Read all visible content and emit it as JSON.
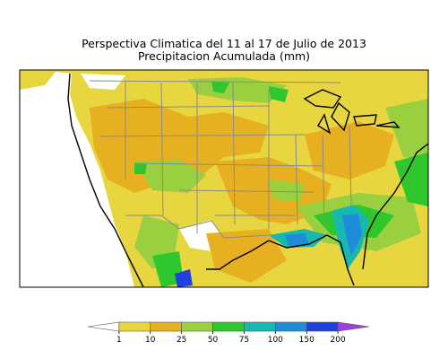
{
  "header": {
    "title_line1": "Perspectiva Climatica del 11 al 17 de Julio de 2013",
    "title_line2": "Precipitacion Acumulada (mm)"
  },
  "legend": {
    "labels": [
      "1",
      "10",
      "25",
      "50",
      "75",
      "100",
      "150",
      "200"
    ],
    "colors": [
      "#ffffff",
      "#e8d640",
      "#e6b020",
      "#9ad040",
      "#2ec82e",
      "#18b8b0",
      "#1e8cd8",
      "#2040e0",
      "#a040e0"
    ]
  },
  "map": {
    "region": "contiguous-united-states",
    "colors": {
      "ocean": "#e8d640",
      "land": "#e8d640",
      "trace": "#ffffff",
      "moderate": "#e6b020",
      "light_green": "#9ad040",
      "green": "#2ec82e",
      "teal": "#18b8b0",
      "blue": "#1e8cd8",
      "dark_blue": "#2040e0",
      "borders": "#8a8a8a",
      "coast": "#000000"
    }
  }
}
